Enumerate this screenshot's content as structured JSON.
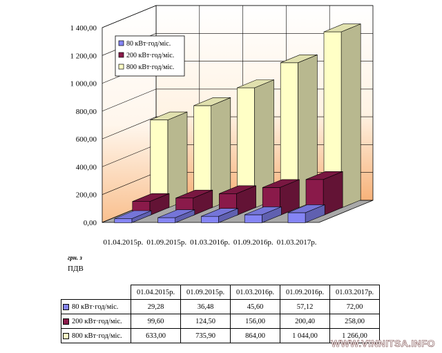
{
  "chart_data": {
    "type": "bar",
    "subtype": "3d-clustered-depth",
    "categories": [
      "01.04.2015р.",
      "01.09.2015р.",
      "01.03.2016р.",
      "01.09.2016р.",
      "01.03.2017р."
    ],
    "series": [
      {
        "name": "80 кВт·год/міс.",
        "values": [
          29.28,
          36.48,
          45.6,
          57.12,
          72.0
        ],
        "color": "#8585f5"
      },
      {
        "name": "200 кВт·год/міс.",
        "values": [
          99.6,
          124.5,
          156.0,
          200.4,
          258.0
        ],
        "color": "#8a1a4a"
      },
      {
        "name": "800 кВт·год/міс.",
        "values": [
          633.0,
          735.9,
          864.0,
          1044.0,
          1266.0
        ],
        "color": "#ffffc6"
      }
    ],
    "y_ticks": [
      "0,00",
      "200,00",
      "400,00",
      "600,00",
      "800,00",
      "1 000,00",
      "1 200,00",
      "1 400,00"
    ],
    "ylim": [
      0,
      1400
    ],
    "ylabel": "грн. з ПДВ",
    "ylabel_line1": "грн. з",
    "ylabel_line2": "ПДВ",
    "legend_position": "top-left",
    "grid": true,
    "table": {
      "rows": [
        {
          "label": "80 кВт·год/міс.",
          "cells": [
            "29,28",
            "36,48",
            "45,60",
            "57,12",
            "72,00"
          ]
        },
        {
          "label": "200 кВт·год/міс.",
          "cells": [
            "99,60",
            "124,50",
            "156,00",
            "200,40",
            "258,00"
          ]
        },
        {
          "label": "800 кВт·год/міс.",
          "cells": [
            "633,00",
            "735,90",
            "864,00",
            "1 044,00",
            "1 266,00"
          ]
        }
      ]
    }
  },
  "watermark": "WWW.VINNITSA.INFO"
}
